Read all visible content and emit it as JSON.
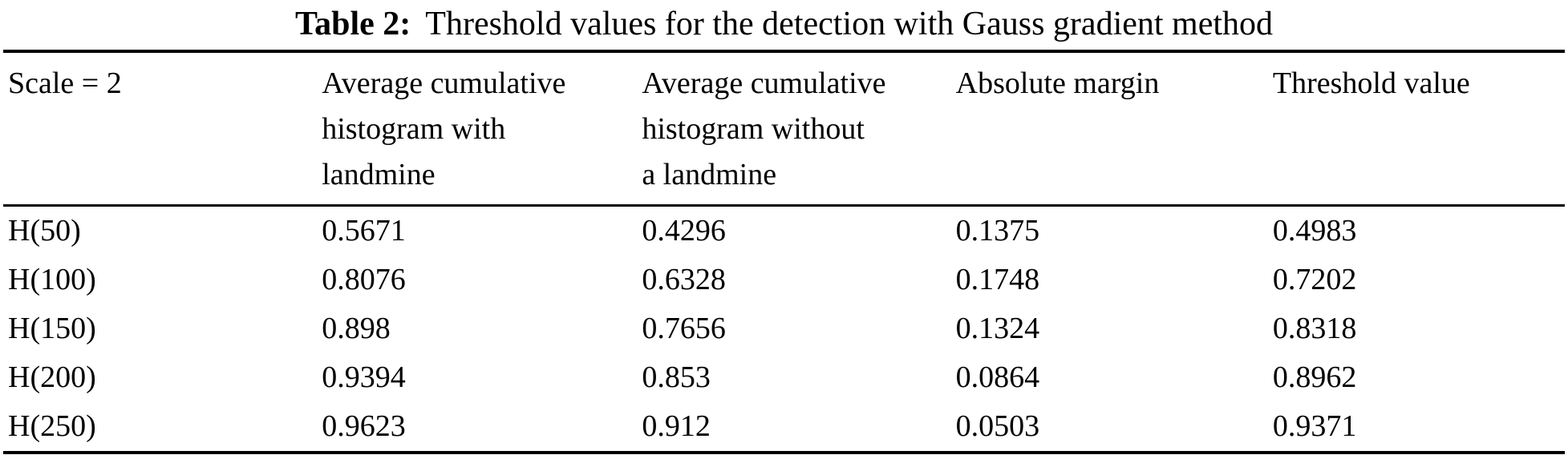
{
  "caption": {
    "label": "Table 2:",
    "text": "Threshold values for the detection with Gauss gradient method"
  },
  "table": {
    "header": {
      "scale": "Scale = 2",
      "with_landmine": "Average cumulative\nhistogram with\nlandmine",
      "without_landmine": "Average cumulative\nhistogram without\na landmine",
      "absolute_margin": "Absolute margin",
      "threshold": "Threshold value"
    },
    "rows": [
      {
        "label": "H(50)",
        "values": [
          "0.5671",
          "0.4296",
          "0.1375",
          "0.4983"
        ]
      },
      {
        "label": "H(100)",
        "values": [
          "0.8076",
          "0.6328",
          "0.1748",
          "0.7202"
        ]
      },
      {
        "label": "H(150)",
        "values": [
          "0.898",
          "0.7656",
          "0.1324",
          "0.8318"
        ]
      },
      {
        "label": "H(200)",
        "values": [
          "0.9394",
          "0.853",
          "0.0864",
          "0.8962"
        ]
      },
      {
        "label": "H(250)",
        "values": [
          "0.9623",
          "0.912",
          "0.0503",
          "0.9371"
        ]
      }
    ]
  },
  "chart_data": {
    "type": "table",
    "title": "Table 2: Threshold values for the detection with Gauss gradient method",
    "columns": [
      "Scale = 2",
      "Average cumulative histogram with landmine",
      "Average cumulative histogram without a landmine",
      "Absolute margin",
      "Threshold value"
    ],
    "rows": [
      [
        "H(50)",
        0.5671,
        0.4296,
        0.1375,
        0.4983
      ],
      [
        "H(100)",
        0.8076,
        0.6328,
        0.1748,
        0.7202
      ],
      [
        "H(150)",
        0.898,
        0.7656,
        0.1324,
        0.8318
      ],
      [
        "H(200)",
        0.9394,
        0.853,
        0.0864,
        0.8962
      ],
      [
        "H(250)",
        0.9623,
        0.912,
        0.0503,
        0.9371
      ]
    ]
  }
}
